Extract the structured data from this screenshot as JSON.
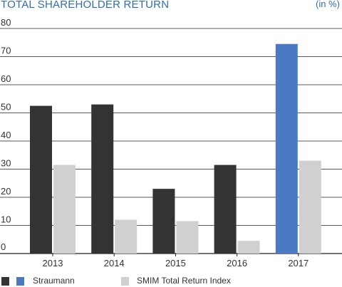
{
  "chart_data": {
    "type": "bar",
    "title": "TOTAL SHAREHOLDER RETURN",
    "unit": "(in %)",
    "categories": [
      "2013",
      "2014",
      "2015",
      "2016",
      "2017"
    ],
    "series": [
      {
        "name": "Straumann",
        "values": [
          52.5,
          53,
          23,
          31.5,
          74.5
        ],
        "colors": [
          "#333333",
          "#333333",
          "#333333",
          "#333333",
          "#4a7ac3"
        ]
      },
      {
        "name": "SMIM Total Return Index",
        "values": [
          31.5,
          12,
          11.5,
          4.5,
          33
        ],
        "colors": [
          "#d0d0d0",
          "#d0d0d0",
          "#d0d0d0",
          "#d0d0d0",
          "#d0d0d0"
        ]
      }
    ],
    "ylim": [
      0,
      80
    ],
    "yticks": [
      "0",
      "10",
      "20",
      "30",
      "40",
      "50",
      "60",
      "70",
      "80"
    ],
    "grid": true,
    "legend_position": "bottom-left",
    "legend": {
      "straumann_colors": [
        "#333333",
        "#4a7ac3"
      ],
      "smim_color": "#d0d0d0"
    },
    "colors": {
      "title": "#2f6db5",
      "grid": "#222222",
      "text": "#333333"
    }
  }
}
